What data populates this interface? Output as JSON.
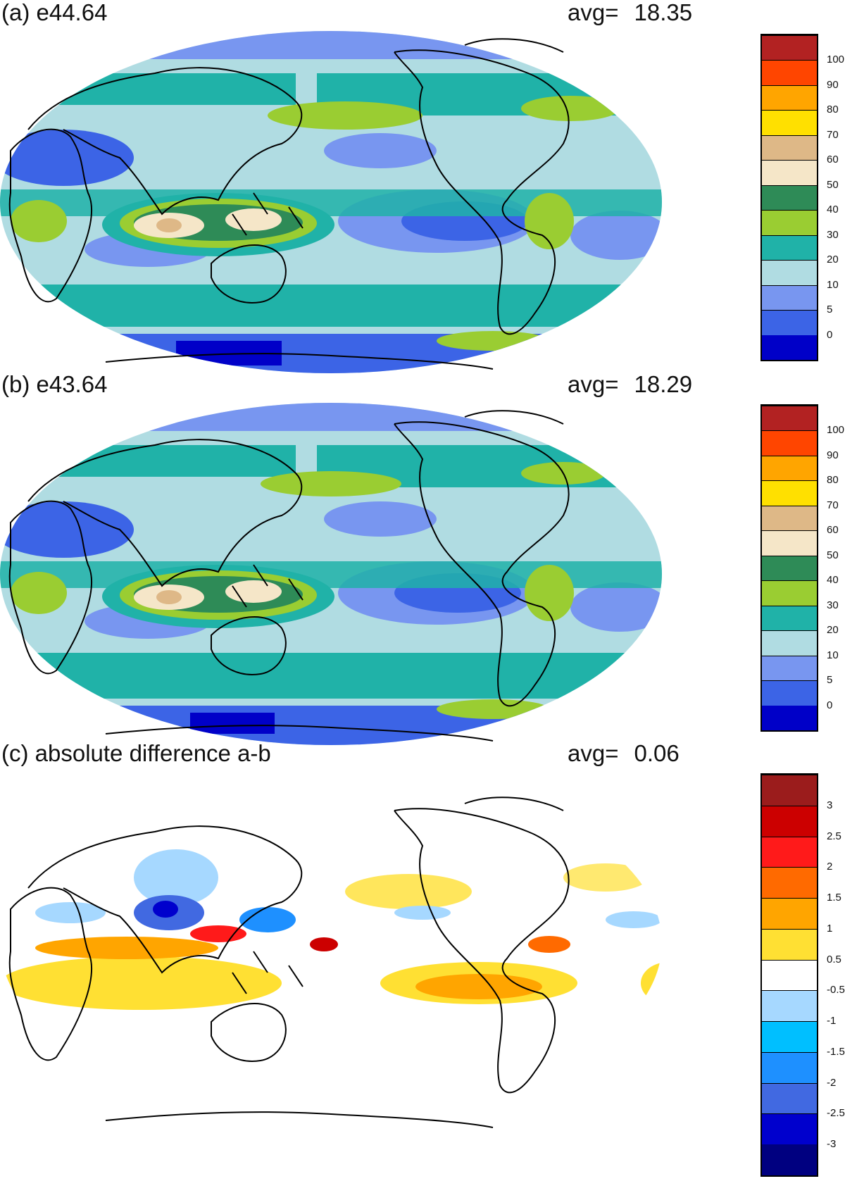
{
  "panels": [
    {
      "id": "a",
      "title": "(a) e44.64",
      "avg_label": "avg=",
      "avg_value": "18.35",
      "colorbar": {
        "colors": [
          "#0000c8",
          "#3c64e6",
          "#7896f0",
          "#b0dce2",
          "#20b2a8",
          "#9acd32",
          "#2e8b57",
          "#f5e6c8",
          "#deb887",
          "#ffe000",
          "#ffa500",
          "#ff4500",
          "#b22222"
        ],
        "labels": [
          "0",
          "5",
          "10",
          "20",
          "30",
          "40",
          "50",
          "60",
          "70",
          "80",
          "90",
          "100"
        ]
      }
    },
    {
      "id": "b",
      "title": "(b) e43.64",
      "avg_label": "avg=",
      "avg_value": "18.29",
      "colorbar": {
        "colors": [
          "#0000c8",
          "#3c64e6",
          "#7896f0",
          "#b0dce2",
          "#20b2a8",
          "#9acd32",
          "#2e8b57",
          "#f5e6c8",
          "#deb887",
          "#ffe000",
          "#ffa500",
          "#ff4500",
          "#b22222"
        ],
        "labels": [
          "0",
          "5",
          "10",
          "20",
          "30",
          "40",
          "50",
          "60",
          "70",
          "80",
          "90",
          "100"
        ]
      }
    },
    {
      "id": "c",
      "title": "(c) absolute difference a-b",
      "avg_label": "avg=",
      "avg_value": "0.06",
      "colorbar": {
        "colors": [
          "#000080",
          "#0000cd",
          "#4169e1",
          "#1e90ff",
          "#00bfff",
          "#a6d8ff",
          "#ffffff",
          "#ffe033",
          "#ffa500",
          "#ff6a00",
          "#ff1a1a",
          "#cc0000",
          "#9b1c1c"
        ],
        "labels": [
          "-3",
          "-2.5",
          "-2",
          "-1.5",
          "-1",
          "-0.5",
          "0.5",
          "1",
          "1.5",
          "2",
          "2.5",
          "3"
        ]
      }
    }
  ]
}
